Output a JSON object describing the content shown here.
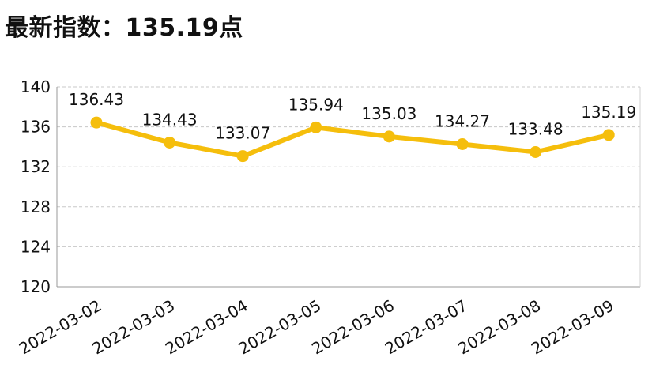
{
  "title": "最新指数：135.19点",
  "chart_data": {
    "type": "line",
    "title": "最新指数：135.19点",
    "categories": [
      "2022-03-02",
      "2022-03-03",
      "2022-03-04",
      "2022-03-05",
      "2022-03-06",
      "2022-03-07",
      "2022-03-08",
      "2022-03-09"
    ],
    "series": [
      {
        "values": [
          136.43,
          134.43,
          133.07,
          135.94,
          135.03,
          134.27,
          133.48,
          135.19
        ]
      }
    ],
    "data_labels": [
      "136.43",
      "134.43",
      "133.07",
      "135.94",
      "135.03",
      "134.27",
      "133.48",
      "135.19"
    ],
    "yticks": [
      120,
      124,
      128,
      132,
      136,
      140
    ],
    "ylim": [
      120,
      140
    ],
    "grid": true,
    "legend": "none",
    "line_color": "#F5BE0C"
  }
}
